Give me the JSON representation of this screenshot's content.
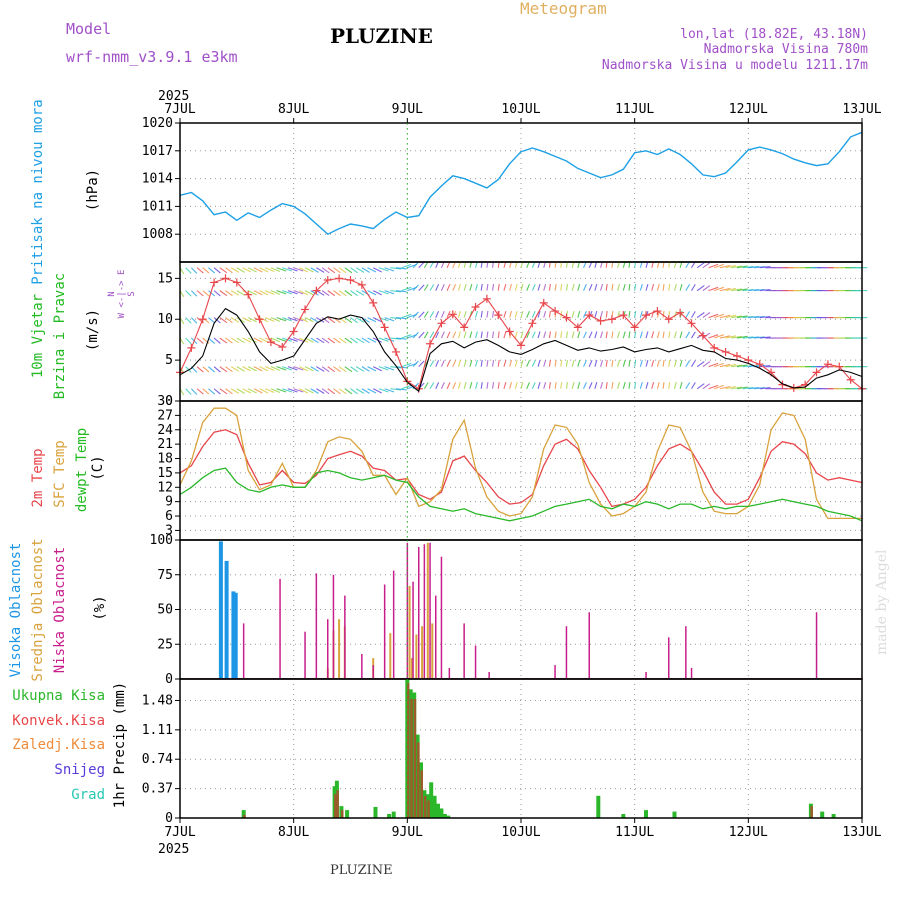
{
  "header": {
    "model_label": "Model",
    "model_name": "wrf-nmm_v3.9.1 e3km",
    "station": "PLUZINE",
    "title": "Meteogram",
    "lonlat": "lon,lat (18.82E, 43.18N)",
    "altitude": "Nadmorska Visina 780m",
    "model_altitude": "Nadmorska Visina u modelu 1211.17m",
    "year": "2025",
    "footer_station": "PLUZINE",
    "credit": "made by Angel"
  },
  "colors": {
    "pressure": "#1ea0e6",
    "temp2m": "#e8464b",
    "sfc_temp": "#d9a23c",
    "dewpoint": "#2ab82a",
    "cloud_high": "#1e96e6",
    "cloud_mid": "#d9a23c",
    "cloud_low": "#c81e8c",
    "precip_total": "#2ab82a",
    "precip_conv": "#e8464b",
    "precip_frozen": "#f08c3c",
    "snow": "#5a3cdc",
    "hail": "#28c8b4",
    "wind_label_1": "#22bb22",
    "wind_label_2": "#22bb22",
    "wind_dir": "#a050c8",
    "title_yellow": "#e0b060",
    "header_purple": "#a050c8"
  },
  "time_axis": {
    "labels": [
      "7JUL",
      "8JUL",
      "9JUL",
      "10JUL",
      "11JUL",
      "12JUL",
      "13JUL"
    ],
    "days": 6
  },
  "chart_data": [
    {
      "type": "line",
      "id": "pressure",
      "title": "",
      "ylabel_1": "Pritisak na nivou mora",
      "ylabel_unit": "(hPa)",
      "ylim": [
        1005,
        1020
      ],
      "yticks": [
        1008,
        1011,
        1014,
        1017,
        1020
      ],
      "x_days": [
        0,
        0.1,
        0.2,
        0.3,
        0.4,
        0.5,
        0.6,
        0.7,
        0.8,
        0.9,
        1.0,
        1.1,
        1.2,
        1.3,
        1.4,
        1.5,
        1.6,
        1.7,
        1.8,
        1.9,
        2.0,
        2.1,
        2.2,
        2.3,
        2.4,
        2.5,
        2.6,
        2.7,
        2.8,
        2.9,
        3.0,
        3.1,
        3.2,
        3.3,
        3.4,
        3.5,
        3.6,
        3.7,
        3.8,
        3.9,
        4.0,
        4.1,
        4.2,
        4.3,
        4.4,
        4.5,
        4.6,
        4.7,
        4.8,
        4.9,
        5.0,
        5.1,
        5.2,
        5.3,
        5.4,
        5.5,
        5.6,
        5.7,
        5.8,
        5.9,
        6.0
      ],
      "values": [
        1012.2,
        1012.5,
        1011.6,
        1010.1,
        1010.4,
        1009.5,
        1010.3,
        1009.8,
        1010.6,
        1011.3,
        1011.0,
        1010.2,
        1009.1,
        1008.0,
        1008.6,
        1009.1,
        1008.9,
        1008.6,
        1009.6,
        1010.4,
        1009.8,
        1010.0,
        1012.0,
        1013.2,
        1014.3,
        1014.0,
        1013.5,
        1013.0,
        1013.9,
        1015.6,
        1016.9,
        1017.3,
        1016.9,
        1016.4,
        1015.9,
        1015.1,
        1014.6,
        1014.1,
        1014.4,
        1015.0,
        1016.8,
        1017.0,
        1016.6,
        1017.2,
        1016.6,
        1015.6,
        1014.4,
        1014.2,
        1014.6,
        1015.8,
        1017.1,
        1017.4,
        1017.1,
        1016.7,
        1016.1,
        1015.7,
        1015.4,
        1015.6,
        1016.9,
        1018.5,
        1019.0
      ]
    },
    {
      "type": "line",
      "id": "wind",
      "ylabel_1": "10m Vjetar",
      "ylabel_2": "Brzina i Pravac",
      "ylabel_unit": "(m/s)",
      "dir_legend": "N\nW <-|-> E\nS",
      "ylim": [
        0,
        17
      ],
      "yticks": [
        0,
        5,
        10,
        15
      ],
      "x_days": [
        0,
        0.1,
        0.2,
        0.3,
        0.4,
        0.5,
        0.6,
        0.7,
        0.8,
        0.9,
        1.0,
        1.1,
        1.2,
        1.3,
        1.4,
        1.5,
        1.6,
        1.7,
        1.8,
        1.9,
        2.0,
        2.1,
        2.2,
        2.3,
        2.4,
        2.5,
        2.6,
        2.7,
        2.8,
        2.9,
        3.0,
        3.1,
        3.2,
        3.3,
        3.4,
        3.5,
        3.6,
        3.7,
        3.8,
        3.9,
        4.0,
        4.1,
        4.2,
        4.3,
        4.4,
        4.5,
        4.6,
        4.7,
        4.8,
        4.9,
        5.0,
        5.1,
        5.2,
        5.3,
        5.4,
        5.5,
        5.6,
        5.7,
        5.8,
        5.9,
        6.0
      ],
      "speed": [
        3.2,
        4.0,
        5.5,
        9.5,
        11.3,
        10.5,
        8.5,
        6.0,
        4.6,
        5.0,
        5.5,
        7.5,
        9.5,
        10.3,
        10.0,
        10.5,
        10.2,
        8.5,
        6.0,
        4.3,
        2.3,
        1.2,
        5.8,
        7.0,
        7.3,
        6.5,
        7.2,
        7.5,
        6.8,
        6.0,
        5.7,
        6.3,
        7.0,
        7.4,
        6.8,
        6.2,
        6.5,
        6.1,
        6.3,
        6.6,
        6.0,
        6.3,
        6.5,
        6.0,
        6.4,
        6.8,
        6.2,
        6.0,
        5.2,
        5.0,
        4.6,
        4.0,
        3.2,
        2.1,
        1.6,
        1.7,
        2.8,
        3.2,
        3.8,
        3.5,
        3.0
      ],
      "gust": [
        3.5,
        6.5,
        10.0,
        14.5,
        15.0,
        14.5,
        13.0,
        10.0,
        7.2,
        6.6,
        8.5,
        11.2,
        13.5,
        14.8,
        15.0,
        14.8,
        14.2,
        12.0,
        9.0,
        6.0,
        2.4,
        1.5,
        7.0,
        9.5,
        10.6,
        9.0,
        11.5,
        12.5,
        10.5,
        8.5,
        6.8,
        9.5,
        12.0,
        11.0,
        10.2,
        9.0,
        10.5,
        9.8,
        10.0,
        10.5,
        9.0,
        10.5,
        11.0,
        10.0,
        10.8,
        9.5,
        8.0,
        6.5,
        6.0,
        5.5,
        5.0,
        4.5,
        3.5,
        2.0,
        1.6,
        2.0,
        3.5,
        4.5,
        4.2,
        2.6,
        1.5
      ],
      "dir_deg": [
        200,
        210,
        215,
        215,
        220,
        225,
        230,
        230,
        235,
        240,
        240,
        230,
        225,
        220,
        220,
        220,
        225,
        230,
        240,
        260,
        300,
        330,
        340,
        345,
        345,
        350,
        350,
        355,
        355,
        350,
        350,
        345,
        350,
        355,
        355,
        350,
        345,
        350,
        355,
        350,
        355,
        350,
        350,
        355,
        350,
        340,
        320,
        300,
        290,
        285,
        280,
        280,
        270,
        270,
        270,
        270,
        270,
        270,
        270,
        270,
        270
      ]
    },
    {
      "type": "line",
      "id": "temperature",
      "ylabel_1": "2m Temp",
      "ylabel_2": "SFC Temp",
      "ylabel_3": "dewpt Temp",
      "ylabel_unit": "(C)",
      "ylim": [
        1,
        30
      ],
      "yticks": [
        3,
        6,
        9,
        12,
        15,
        18,
        21,
        24,
        27,
        30
      ],
      "x_days": [
        0,
        0.1,
        0.2,
        0.3,
        0.4,
        0.5,
        0.6,
        0.7,
        0.8,
        0.9,
        1.0,
        1.1,
        1.2,
        1.3,
        1.4,
        1.5,
        1.6,
        1.7,
        1.8,
        1.9,
        2.0,
        2.1,
        2.2,
        2.3,
        2.4,
        2.5,
        2.6,
        2.7,
        2.8,
        2.9,
        3.0,
        3.1,
        3.2,
        3.3,
        3.4,
        3.5,
        3.6,
        3.7,
        3.8,
        3.9,
        4.0,
        4.1,
        4.2,
        4.3,
        4.4,
        4.5,
        4.6,
        4.7,
        4.8,
        4.9,
        5.0,
        5.1,
        5.2,
        5.3,
        5.4,
        5.5,
        5.6,
        5.7,
        5.8,
        5.9,
        6.0
      ],
      "series": [
        {
          "name": "2m Temp",
          "values": [
            15,
            16.5,
            20.5,
            23.5,
            24,
            23,
            17,
            12.5,
            13,
            15.5,
            13,
            12.8,
            14.5,
            18,
            18.8,
            19.5,
            18.5,
            16,
            15.5,
            13.5,
            13.8,
            10.5,
            9.5,
            11,
            17.5,
            18.5,
            15.5,
            13,
            10,
            8.5,
            8.8,
            10.5,
            16.5,
            21,
            22,
            20,
            15.5,
            12,
            8,
            8.5,
            9.5,
            12,
            16.5,
            20,
            21,
            19.5,
            15.5,
            11,
            8.5,
            8.5,
            9.5,
            14,
            19.5,
            21.5,
            21,
            19,
            15,
            13.5,
            14,
            13.5,
            13
          ]
        },
        {
          "name": "SFC Temp",
          "values": [
            12.5,
            17.5,
            25.5,
            28.5,
            28.5,
            27,
            15.5,
            11.5,
            12.5,
            17,
            12,
            12,
            15.5,
            21.5,
            22.5,
            22,
            19.5,
            14.5,
            14.5,
            10.5,
            14,
            8,
            9,
            11.5,
            22,
            26,
            16,
            10,
            7,
            6,
            6.5,
            10,
            20,
            25,
            24.5,
            21,
            13,
            8.5,
            6,
            6.5,
            8,
            11,
            19.5,
            25,
            24.5,
            19.5,
            11,
            7,
            6.5,
            6.5,
            8,
            12.5,
            24,
            27.5,
            27,
            22,
            9.5,
            5.5,
            5.5,
            5.5,
            5.5
          ]
        },
        {
          "name": "dewpt Temp",
          "values": [
            10.5,
            12,
            14,
            15.5,
            16,
            13,
            11.5,
            11,
            12,
            12.5,
            12,
            12,
            15,
            15.5,
            15,
            14,
            13.5,
            14,
            14.5,
            13.5,
            13,
            10,
            8,
            7.5,
            7,
            7.5,
            6.5,
            6,
            5.5,
            5,
            5.5,
            6,
            7,
            8,
            8.5,
            9,
            9.5,
            8,
            7.5,
            8.5,
            8,
            9,
            8.5,
            7.5,
            8.5,
            8.5,
            7.5,
            8,
            7.5,
            8,
            8,
            8.5,
            9,
            9.5,
            9,
            8.5,
            8,
            7,
            6.5,
            6,
            5
          ]
        }
      ]
    },
    {
      "type": "bar",
      "id": "clouds",
      "ylabel_1": "Visoka Oblacnost",
      "ylabel_2": "Srednja Oblacnost",
      "ylabel_3": "Niska Oblacnost",
      "ylabel_unit": "(%)",
      "ylim": [
        0,
        100
      ],
      "yticks": [
        0,
        25,
        50,
        75,
        100
      ],
      "series": [
        {
          "name": "Visoka Oblacnost",
          "x_days": [
            0.36,
            0.41,
            0.47,
            0.49
          ],
          "values": [
            99,
            85,
            63,
            62
          ]
        },
        {
          "name": "Srednja Oblacnost",
          "x_days": [
            1.3,
            1.35,
            1.4,
            1.45,
            1.7,
            1.85,
            2.02,
            2.04,
            2.08,
            2.13,
            2.18,
            2.22
          ],
          "values": [
            8,
            35,
            43,
            38,
            15,
            33,
            67,
            15,
            32,
            38,
            98,
            40
          ]
        },
        {
          "name": "Niska Oblacnost",
          "x_days": [
            0.56,
            0.88,
            1.1,
            1.2,
            1.3,
            1.35,
            1.45,
            1.6,
            1.7,
            1.8,
            1.88,
            2.0,
            2.05,
            2.1,
            2.15,
            2.2,
            2.25,
            2.3,
            2.37,
            2.5,
            2.6,
            2.72,
            3.3,
            3.4,
            3.6,
            4.1,
            4.3,
            4.45,
            4.5,
            5.6
          ],
          "values": [
            40,
            72,
            34,
            76,
            43,
            75,
            60,
            18,
            10,
            68,
            78,
            98,
            70,
            95,
            97,
            98,
            60,
            88,
            8,
            40,
            24,
            5,
            10,
            38,
            48,
            5,
            30,
            38,
            8,
            48
          ]
        }
      ]
    },
    {
      "type": "bar",
      "id": "precip",
      "ylabel_unit": "1hr Precip (mm)",
      "legend": [
        "Ukupna Kisa",
        "Konvek.Kisa",
        "Zaledj.Kisa",
        "Snijeg",
        "Grad"
      ],
      "ylim": [
        0,
        1.75
      ],
      "yticks": [
        0,
        0.37,
        0.74,
        1.11,
        1.48
      ],
      "series": [
        {
          "name": "Ukupna Kisa",
          "x_days": [
            0.56,
            1.36,
            1.38,
            1.42,
            1.47,
            1.72,
            1.84,
            1.88,
            2.0,
            2.03,
            2.06,
            2.09,
            2.12,
            2.15,
            2.18,
            2.21,
            2.24,
            2.27,
            2.3,
            2.33,
            2.36,
            3.68,
            3.9,
            4.1,
            4.35,
            5.55,
            5.65,
            5.75
          ],
          "values": [
            0.1,
            0.4,
            0.47,
            0.15,
            0.1,
            0.14,
            0.05,
            0.08,
            1.75,
            1.62,
            1.58,
            1.05,
            0.7,
            0.35,
            0.3,
            0.45,
            0.28,
            0.18,
            0.12,
            0.05,
            0.03,
            0.28,
            0.05,
            0.1,
            0.08,
            0.18,
            0.08,
            0.05
          ]
        },
        {
          "name": "Konvek.Kisa",
          "x_days": [
            0.56,
            1.36,
            1.38,
            1.42,
            2.0,
            2.03,
            2.06,
            2.09,
            2.12,
            2.15,
            2.18,
            3.68,
            5.55
          ],
          "values": [
            0.04,
            0.3,
            0.35,
            0.1,
            1.7,
            1.5,
            1.5,
            0.95,
            0.6,
            0.28,
            0.22,
            0.0,
            0.15
          ]
        }
      ]
    }
  ]
}
